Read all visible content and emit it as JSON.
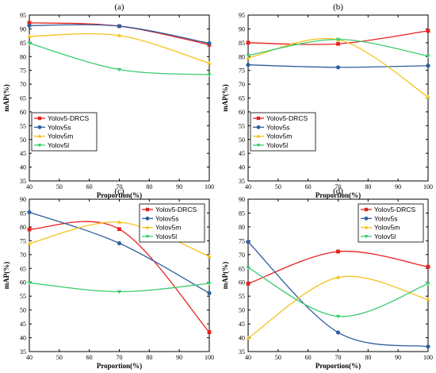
{
  "colors": {
    "Yolov5-DRCS": "#e8201c",
    "Yolov5s": "#2f5e9e",
    "Yolov5m": "#f7c21e",
    "Yolov5l": "#3ccc6e"
  },
  "markers": {
    "Yolov5-DRCS": "square",
    "Yolov5s": "circle",
    "Yolov5m": "triangle-up",
    "Yolov5l": "triangle-down"
  },
  "chart_data": [
    {
      "type": "line",
      "title": "(a)",
      "xlabel": "Proportion(%)",
      "ylabel": "mAP(%)",
      "xlim": [
        40,
        100
      ],
      "ylim": [
        35,
        95
      ],
      "xticks": [
        40,
        50,
        60,
        70,
        80,
        90,
        100
      ],
      "yticks": [
        35,
        40,
        45,
        50,
        55,
        60,
        65,
        70,
        75,
        80,
        85,
        90,
        95
      ],
      "legend": "bottom-left",
      "x": [
        40,
        70,
        100
      ],
      "series": [
        {
          "name": "Yolov5-DRCS",
          "values": [
            92.2,
            91.0,
            84.3
          ]
        },
        {
          "name": "Yolov5s",
          "values": [
            91.2,
            91.0,
            84.8
          ]
        },
        {
          "name": "Yolov5m",
          "values": [
            87.3,
            87.6,
            77.6
          ]
        },
        {
          "name": "Yolov5l",
          "values": [
            84.8,
            75.3,
            73.4
          ]
        }
      ]
    },
    {
      "type": "line",
      "title": "(b)",
      "xlabel": "Proportion(%)",
      "ylabel": "mAP(%)",
      "xlim": [
        40,
        100
      ],
      "ylim": [
        35,
        95
      ],
      "xticks": [
        40,
        50,
        60,
        70,
        80,
        90,
        100
      ],
      "yticks": [
        35,
        40,
        45,
        50,
        55,
        60,
        65,
        70,
        75,
        80,
        85,
        90,
        95
      ],
      "legend": "bottom-left",
      "x": [
        40,
        70,
        100
      ],
      "series": [
        {
          "name": "Yolov5-DRCS",
          "values": [
            85.0,
            84.6,
            89.3
          ]
        },
        {
          "name": "Yolov5s",
          "values": [
            77.0,
            76.1,
            76.7
          ]
        },
        {
          "name": "Yolov5m",
          "values": [
            79.5,
            86.1,
            65.4
          ]
        },
        {
          "name": "Yolov5l",
          "values": [
            80.4,
            86.2,
            80.2
          ]
        }
      ]
    },
    {
      "type": "line",
      "title": "(c)",
      "xlabel": "Proportion(%)",
      "ylabel": "mAP(%)",
      "xlim": [
        40,
        100
      ],
      "ylim": [
        35,
        90
      ],
      "xticks": [
        40,
        50,
        60,
        70,
        80,
        90,
        100
      ],
      "yticks": [
        35,
        40,
        45,
        50,
        55,
        60,
        65,
        70,
        75,
        80,
        85,
        90
      ],
      "legend": "top-right",
      "x": [
        40,
        70,
        100
      ],
      "series": [
        {
          "name": "Yolov5-DRCS",
          "values": [
            79.1,
            79.2,
            42.0
          ]
        },
        {
          "name": "Yolov5s",
          "values": [
            85.3,
            74.1,
            56.1
          ]
        },
        {
          "name": "Yolov5m",
          "values": [
            74.0,
            81.7,
            69.4
          ]
        },
        {
          "name": "Yolov5l",
          "values": [
            59.8,
            56.6,
            59.6
          ]
        }
      ]
    },
    {
      "type": "line",
      "title": "(d)",
      "xlabel": "Proportion(%)",
      "ylabel": "mAP(%)",
      "xlim": [
        40,
        100
      ],
      "ylim": [
        35,
        90
      ],
      "xticks": [
        40,
        50,
        60,
        70,
        80,
        90,
        100
      ],
      "yticks": [
        35,
        40,
        45,
        50,
        55,
        60,
        65,
        70,
        75,
        80,
        85,
        90
      ],
      "legend": "top-right",
      "x": [
        40,
        70,
        100
      ],
      "series": [
        {
          "name": "Yolov5-DRCS",
          "values": [
            59.5,
            71.1,
            65.6
          ]
        },
        {
          "name": "Yolov5s",
          "values": [
            74.6,
            41.9,
            36.8
          ]
        },
        {
          "name": "Yolov5m",
          "values": [
            39.8,
            61.8,
            53.8
          ]
        },
        {
          "name": "Yolov5l",
          "values": [
            65.3,
            47.7,
            59.5
          ]
        }
      ]
    }
  ]
}
